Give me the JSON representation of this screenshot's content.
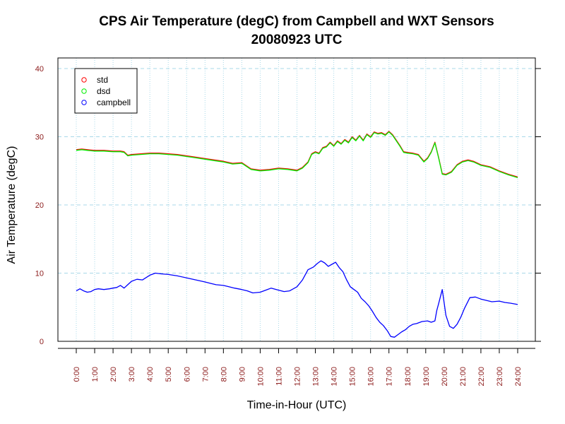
{
  "chart_data": {
    "type": "line",
    "title": "CPS Air Temperature (degC) from Campbell and WXT Sensors",
    "subtitle": "20080923  UTC",
    "xlabel": "Time-in-Hour (UTC)",
    "ylabel": "Air Temperature (degC)",
    "xlim": [
      0,
      24
    ],
    "ylim": [
      0,
      40
    ],
    "yticks": [
      0,
      10,
      20,
      30,
      40
    ],
    "xtick_labels": [
      "0:00",
      "1:00",
      "2:00",
      "3:00",
      "4:00",
      "5:00",
      "6:00",
      "7:00",
      "8:00",
      "9:00",
      "10:00",
      "11:00",
      "12:00",
      "13:00",
      "14:00",
      "15:00",
      "16:00",
      "17:00",
      "18:00",
      "19:00",
      "20:00",
      "21:00",
      "22:00",
      "23:00",
      "24:00"
    ],
    "grid": true,
    "legend_position": "top-left",
    "series": [
      {
        "name": "std",
        "color": "#ff0000",
        "x": [
          0,
          0.3,
          0.6,
          1.0,
          1.5,
          2.0,
          2.4,
          2.6,
          2.8,
          3.0,
          3.5,
          4.0,
          4.5,
          5.0,
          5.5,
          6.0,
          6.5,
          7.0,
          7.5,
          8.0,
          8.5,
          9.0,
          9.5,
          10.0,
          10.5,
          11.0,
          11.5,
          12.0,
          12.3,
          12.6,
          12.8,
          13.0,
          13.2,
          13.4,
          13.6,
          13.8,
          14.0,
          14.2,
          14.4,
          14.6,
          14.8,
          15.0,
          15.2,
          15.4,
          15.6,
          15.8,
          16.0,
          16.2,
          16.4,
          16.6,
          16.8,
          17.0,
          17.2,
          17.4,
          17.6,
          17.8,
          18.0,
          18.3,
          18.6,
          18.9,
          19.1,
          19.3,
          19.5,
          19.7,
          19.9,
          20.1,
          20.4,
          20.7,
          21.0,
          21.3,
          21.6,
          22.0,
          22.5,
          23.0,
          23.5,
          24.0
        ],
        "values": [
          28.1,
          28.2,
          28.1,
          28.0,
          28.0,
          27.9,
          27.9,
          27.8,
          27.3,
          27.4,
          27.5,
          27.6,
          27.6,
          27.5,
          27.4,
          27.2,
          27.0,
          26.8,
          26.6,
          26.4,
          26.1,
          26.2,
          25.3,
          25.1,
          25.2,
          25.4,
          25.3,
          25.1,
          25.5,
          26.3,
          27.5,
          27.8,
          27.6,
          28.4,
          28.6,
          29.2,
          28.7,
          29.4,
          29.0,
          29.6,
          29.2,
          30.0,
          29.5,
          30.2,
          29.5,
          30.4,
          30.0,
          30.7,
          30.5,
          30.6,
          30.3,
          30.8,
          30.3,
          29.5,
          28.7,
          27.8,
          27.7,
          27.6,
          27.4,
          26.4,
          26.9,
          27.8,
          29.2,
          27.0,
          24.6,
          24.5,
          24.9,
          25.9,
          26.4,
          26.6,
          26.4,
          25.9,
          25.6,
          25.0,
          24.5,
          24.1
        ]
      },
      {
        "name": "dsd",
        "color": "#00ee00",
        "x": [
          0,
          0.3,
          0.6,
          1.0,
          1.5,
          2.0,
          2.4,
          2.6,
          2.8,
          3.0,
          3.5,
          4.0,
          4.5,
          5.0,
          5.5,
          6.0,
          6.5,
          7.0,
          7.5,
          8.0,
          8.5,
          9.0,
          9.5,
          10.0,
          10.5,
          11.0,
          11.5,
          12.0,
          12.3,
          12.6,
          12.8,
          13.0,
          13.2,
          13.4,
          13.6,
          13.8,
          14.0,
          14.2,
          14.4,
          14.6,
          14.8,
          15.0,
          15.2,
          15.4,
          15.6,
          15.8,
          16.0,
          16.2,
          16.4,
          16.6,
          16.8,
          17.0,
          17.2,
          17.4,
          17.6,
          17.8,
          18.0,
          18.3,
          18.6,
          18.9,
          19.1,
          19.3,
          19.5,
          19.7,
          19.9,
          20.1,
          20.4,
          20.7,
          21.0,
          21.3,
          21.6,
          22.0,
          22.5,
          23.0,
          23.5,
          24.0
        ],
        "values": [
          28.0,
          28.1,
          28.0,
          27.9,
          27.9,
          27.8,
          27.8,
          27.7,
          27.2,
          27.3,
          27.4,
          27.5,
          27.5,
          27.4,
          27.3,
          27.1,
          26.9,
          26.7,
          26.5,
          26.3,
          26.0,
          26.1,
          25.2,
          25.0,
          25.1,
          25.3,
          25.2,
          25.0,
          25.4,
          26.2,
          27.4,
          27.7,
          27.5,
          28.3,
          28.5,
          29.1,
          28.6,
          29.3,
          28.9,
          29.5,
          29.1,
          29.9,
          29.4,
          30.1,
          29.4,
          30.3,
          29.9,
          30.6,
          30.4,
          30.5,
          30.2,
          30.7,
          30.2,
          29.4,
          28.6,
          27.7,
          27.6,
          27.5,
          27.3,
          26.3,
          26.8,
          27.7,
          29.1,
          26.9,
          24.5,
          24.4,
          24.8,
          25.8,
          26.3,
          26.5,
          26.3,
          25.8,
          25.5,
          24.9,
          24.4,
          24.0
        ]
      },
      {
        "name": "campbell",
        "color": "#0000ff",
        "x": [
          0,
          0.2,
          0.4,
          0.6,
          0.8,
          1.0,
          1.2,
          1.5,
          1.8,
          2.0,
          2.2,
          2.4,
          2.6,
          2.8,
          3.0,
          3.3,
          3.6,
          4.0,
          4.3,
          4.6,
          5.0,
          5.5,
          6.0,
          6.5,
          7.0,
          7.3,
          7.6,
          8.0,
          8.3,
          8.6,
          9.0,
          9.3,
          9.6,
          10.0,
          10.3,
          10.6,
          11.0,
          11.3,
          11.6,
          12.0,
          12.3,
          12.6,
          12.9,
          13.1,
          13.3,
          13.5,
          13.7,
          13.9,
          14.1,
          14.3,
          14.5,
          14.7,
          14.9,
          15.1,
          15.3,
          15.5,
          15.7,
          15.9,
          16.1,
          16.3,
          16.5,
          16.7,
          16.9,
          17.1,
          17.3,
          17.5,
          17.7,
          17.9,
          18.1,
          18.3,
          18.5,
          18.8,
          19.1,
          19.3,
          19.5,
          19.6,
          19.7,
          19.9,
          20.1,
          20.3,
          20.5,
          20.7,
          20.9,
          21.1,
          21.4,
          21.7,
          22.0,
          22.3,
          22.6,
          23.0,
          23.3,
          23.6,
          24.0
        ],
        "values": [
          7.4,
          7.7,
          7.4,
          7.2,
          7.3,
          7.6,
          7.7,
          7.6,
          7.7,
          7.8,
          7.9,
          8.2,
          7.8,
          8.3,
          8.8,
          9.1,
          9.0,
          9.7,
          10.0,
          9.9,
          9.8,
          9.6,
          9.3,
          9.0,
          8.7,
          8.5,
          8.3,
          8.2,
          8.0,
          7.8,
          7.6,
          7.4,
          7.1,
          7.2,
          7.5,
          7.8,
          7.5,
          7.3,
          7.4,
          8.0,
          9.0,
          10.5,
          10.9,
          11.4,
          11.8,
          11.5,
          11.0,
          11.3,
          11.6,
          10.8,
          10.2,
          9.0,
          8.0,
          7.6,
          7.2,
          6.3,
          5.8,
          5.2,
          4.4,
          3.5,
          2.8,
          2.3,
          1.6,
          0.7,
          0.6,
          1.0,
          1.4,
          1.7,
          2.2,
          2.5,
          2.6,
          2.9,
          3.0,
          2.8,
          3.0,
          4.5,
          5.5,
          7.6,
          3.8,
          2.2,
          1.9,
          2.5,
          3.5,
          4.8,
          6.4,
          6.5,
          6.2,
          6.0,
          5.8,
          5.9,
          5.7,
          5.6,
          5.4
        ]
      }
    ]
  }
}
